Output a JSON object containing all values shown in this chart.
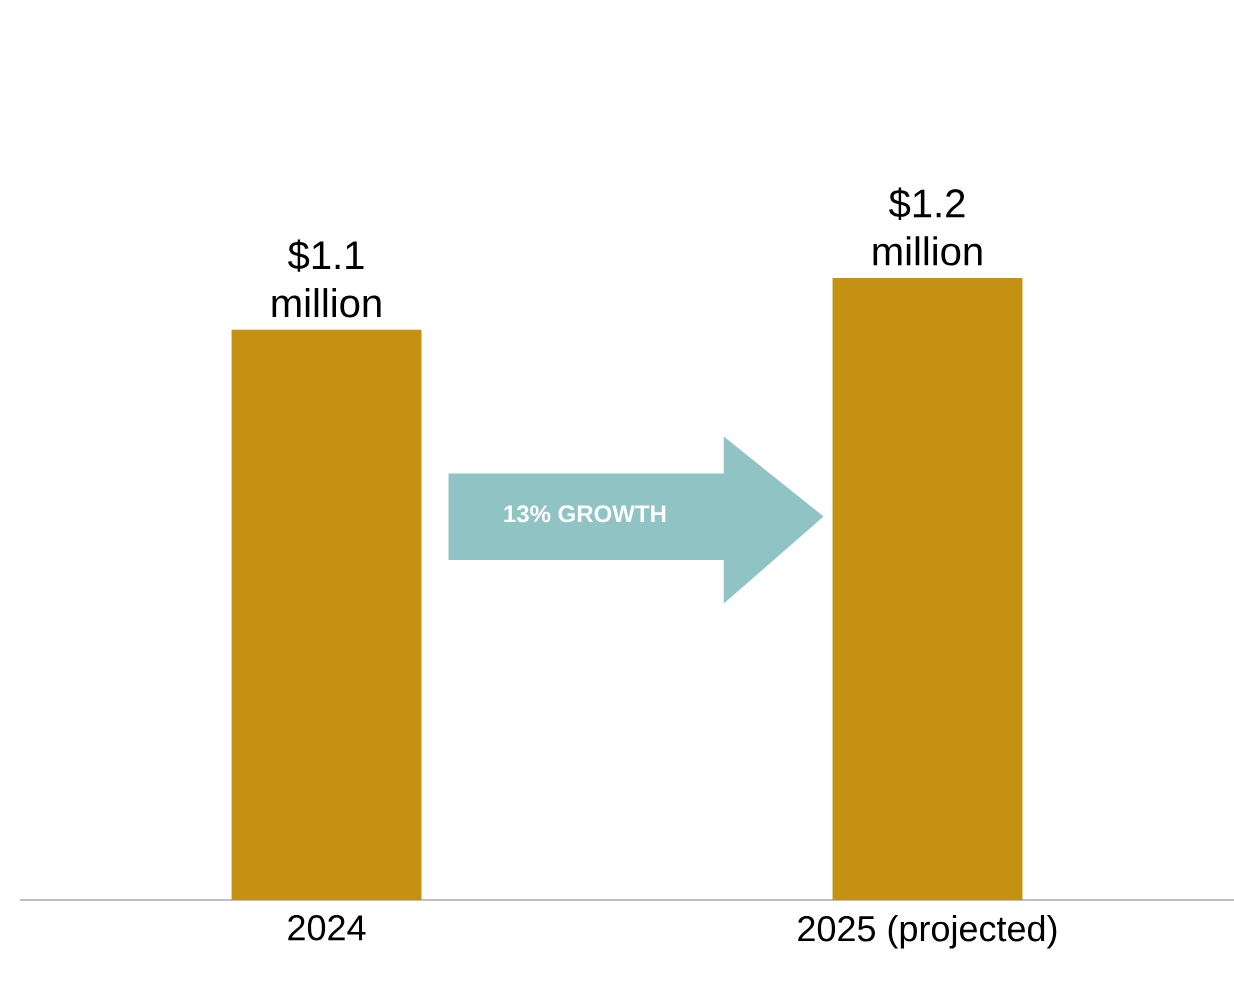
{
  "chart_data": {
    "type": "bar",
    "categories": [
      "2024",
      "2025 (projected)"
    ],
    "values": [
      1.1,
      1.2
    ],
    "value_labels": [
      "$1.1 million",
      "$1.2 million"
    ],
    "color": "#c49112",
    "annotations": [
      "13% GROWTH"
    ]
  }
}
